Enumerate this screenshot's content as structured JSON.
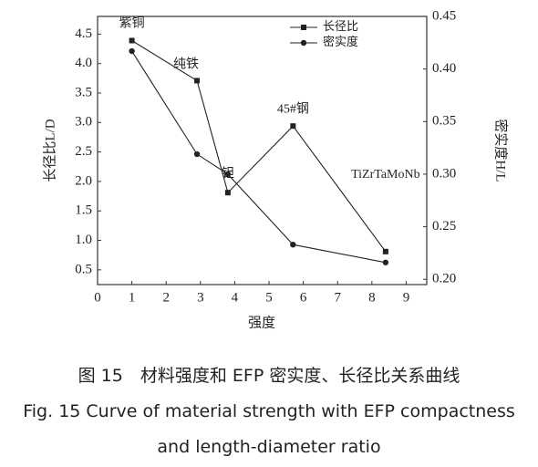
{
  "chart_data": {
    "type": "line",
    "x_label": "强度",
    "y_label": "长径比L/D",
    "y2_label": "密实度H/L",
    "x": [
      1,
      2.9,
      3.8,
      5.7,
      8.4
    ],
    "series": [
      {
        "name": "长径比",
        "color": "#222222",
        "marker": "square",
        "values": [
          4.39,
          3.71,
          1.81,
          2.94,
          0.81
        ]
      },
      {
        "name": "密实度",
        "color": "#222222",
        "marker": "circle",
        "axis": "y2",
        "values": [
          0.417,
          0.319,
          0.3,
          0.233,
          0.216
        ]
      }
    ],
    "annotations": [
      "紫铜",
      "纯铁",
      "钽",
      "45#钢",
      "TiZrTaMoNb"
    ],
    "xlim": [
      0,
      9.6
    ],
    "xticks": [
      0,
      1,
      2,
      3,
      4,
      5,
      6,
      7,
      8,
      9
    ],
    "ylim": [
      0.25,
      4.8
    ],
    "yticks": [
      0.5,
      {
        "value": 1,
        "label": "1.0"
      },
      1.5,
      {
        "value": 2,
        "label": "2.0"
      },
      2.5,
      {
        "value": 3,
        "label": "3.0"
      },
      3.5,
      {
        "value": 4,
        "label": "4.0"
      },
      4.5
    ],
    "y2lim": [
      0.195,
      0.45
    ],
    "y2ticks": [
      {
        "value": 0.2,
        "label": "0.20"
      },
      0.25,
      {
        "value": 0.3,
        "label": "0.30"
      },
      0.35,
      {
        "value": 0.4,
        "label": "0.40"
      },
      0.45
    ],
    "legend": "upper right"
  },
  "caption": {
    "zh": "图 15　材料强度和 EFP 密实度、长径比关系曲线",
    "en": "Fig. 15 Curve of material strength with EFP compactness and length-diameter ratio"
  }
}
